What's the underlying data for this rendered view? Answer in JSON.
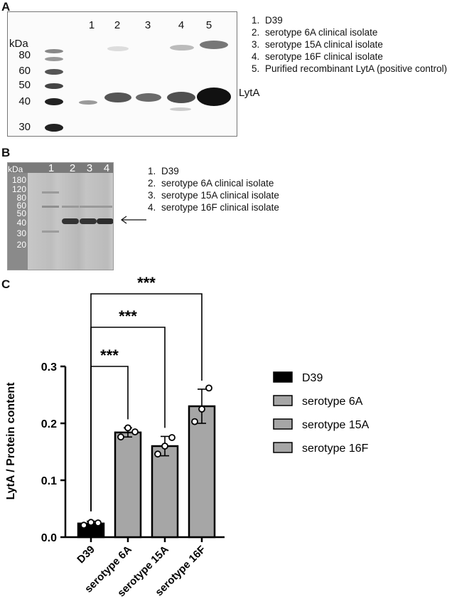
{
  "panel_a": {
    "letter": "A",
    "mw_unit": "kDa",
    "mw_markers": [
      "80",
      "60",
      "50",
      "40",
      "30"
    ],
    "lanes": [
      "1",
      "2",
      "3",
      "4",
      "5"
    ],
    "band_label": "LytA",
    "legend": [
      {
        "num": "1.",
        "text": "D39"
      },
      {
        "num": "2.",
        "text": "serotype 6A clinical isolate"
      },
      {
        "num": "3.",
        "text": "serotype 15A clinical isolate"
      },
      {
        "num": "4.",
        "text": "serotype 16F clinical isolate"
      },
      {
        "num": "5.",
        "text": "Purified recombinant LytA (positive control)"
      }
    ]
  },
  "panel_b": {
    "letter": "B",
    "mw_unit": "kDa",
    "mw_markers": [
      "180",
      "120",
      "80",
      "60",
      "50",
      "40",
      "30",
      "20"
    ],
    "lanes": [
      "1",
      "2",
      "3",
      "4"
    ],
    "legend": [
      {
        "num": "1.",
        "text": "D39"
      },
      {
        "num": "2.",
        "text": "serotype 6A clinical isolate"
      },
      {
        "num": "3.",
        "text": "serotype 15A clinical isolate"
      },
      {
        "num": "4.",
        "text": "serotype 16F clinical isolate"
      }
    ]
  },
  "panel_c": {
    "letter": "C",
    "significance": [
      "***",
      "***",
      "***"
    ],
    "chart_data": {
      "type": "bar",
      "ylabel": "LytA / Protein content",
      "ylim": [
        0,
        0.3
      ],
      "yticks": [
        "0.0",
        "0.1",
        "0.2",
        "0.3"
      ],
      "categories": [
        "D39",
        "serotype 6A",
        "serotype 15A",
        "serotype 16F"
      ],
      "values": [
        0.024,
        0.184,
        0.16,
        0.23
      ],
      "errors": [
        0.004,
        0.008,
        0.017,
        0.03
      ],
      "points": [
        [
          0.021,
          0.026,
          0.025
        ],
        [
          0.176,
          0.192,
          0.185
        ],
        [
          0.146,
          0.16,
          0.175
        ],
        [
          0.203,
          0.225,
          0.262
        ]
      ],
      "colors": [
        "#000000",
        "#a6a6a6",
        "#a6a6a6",
        "#a6a6a6"
      ],
      "legend_position": "right"
    }
  }
}
